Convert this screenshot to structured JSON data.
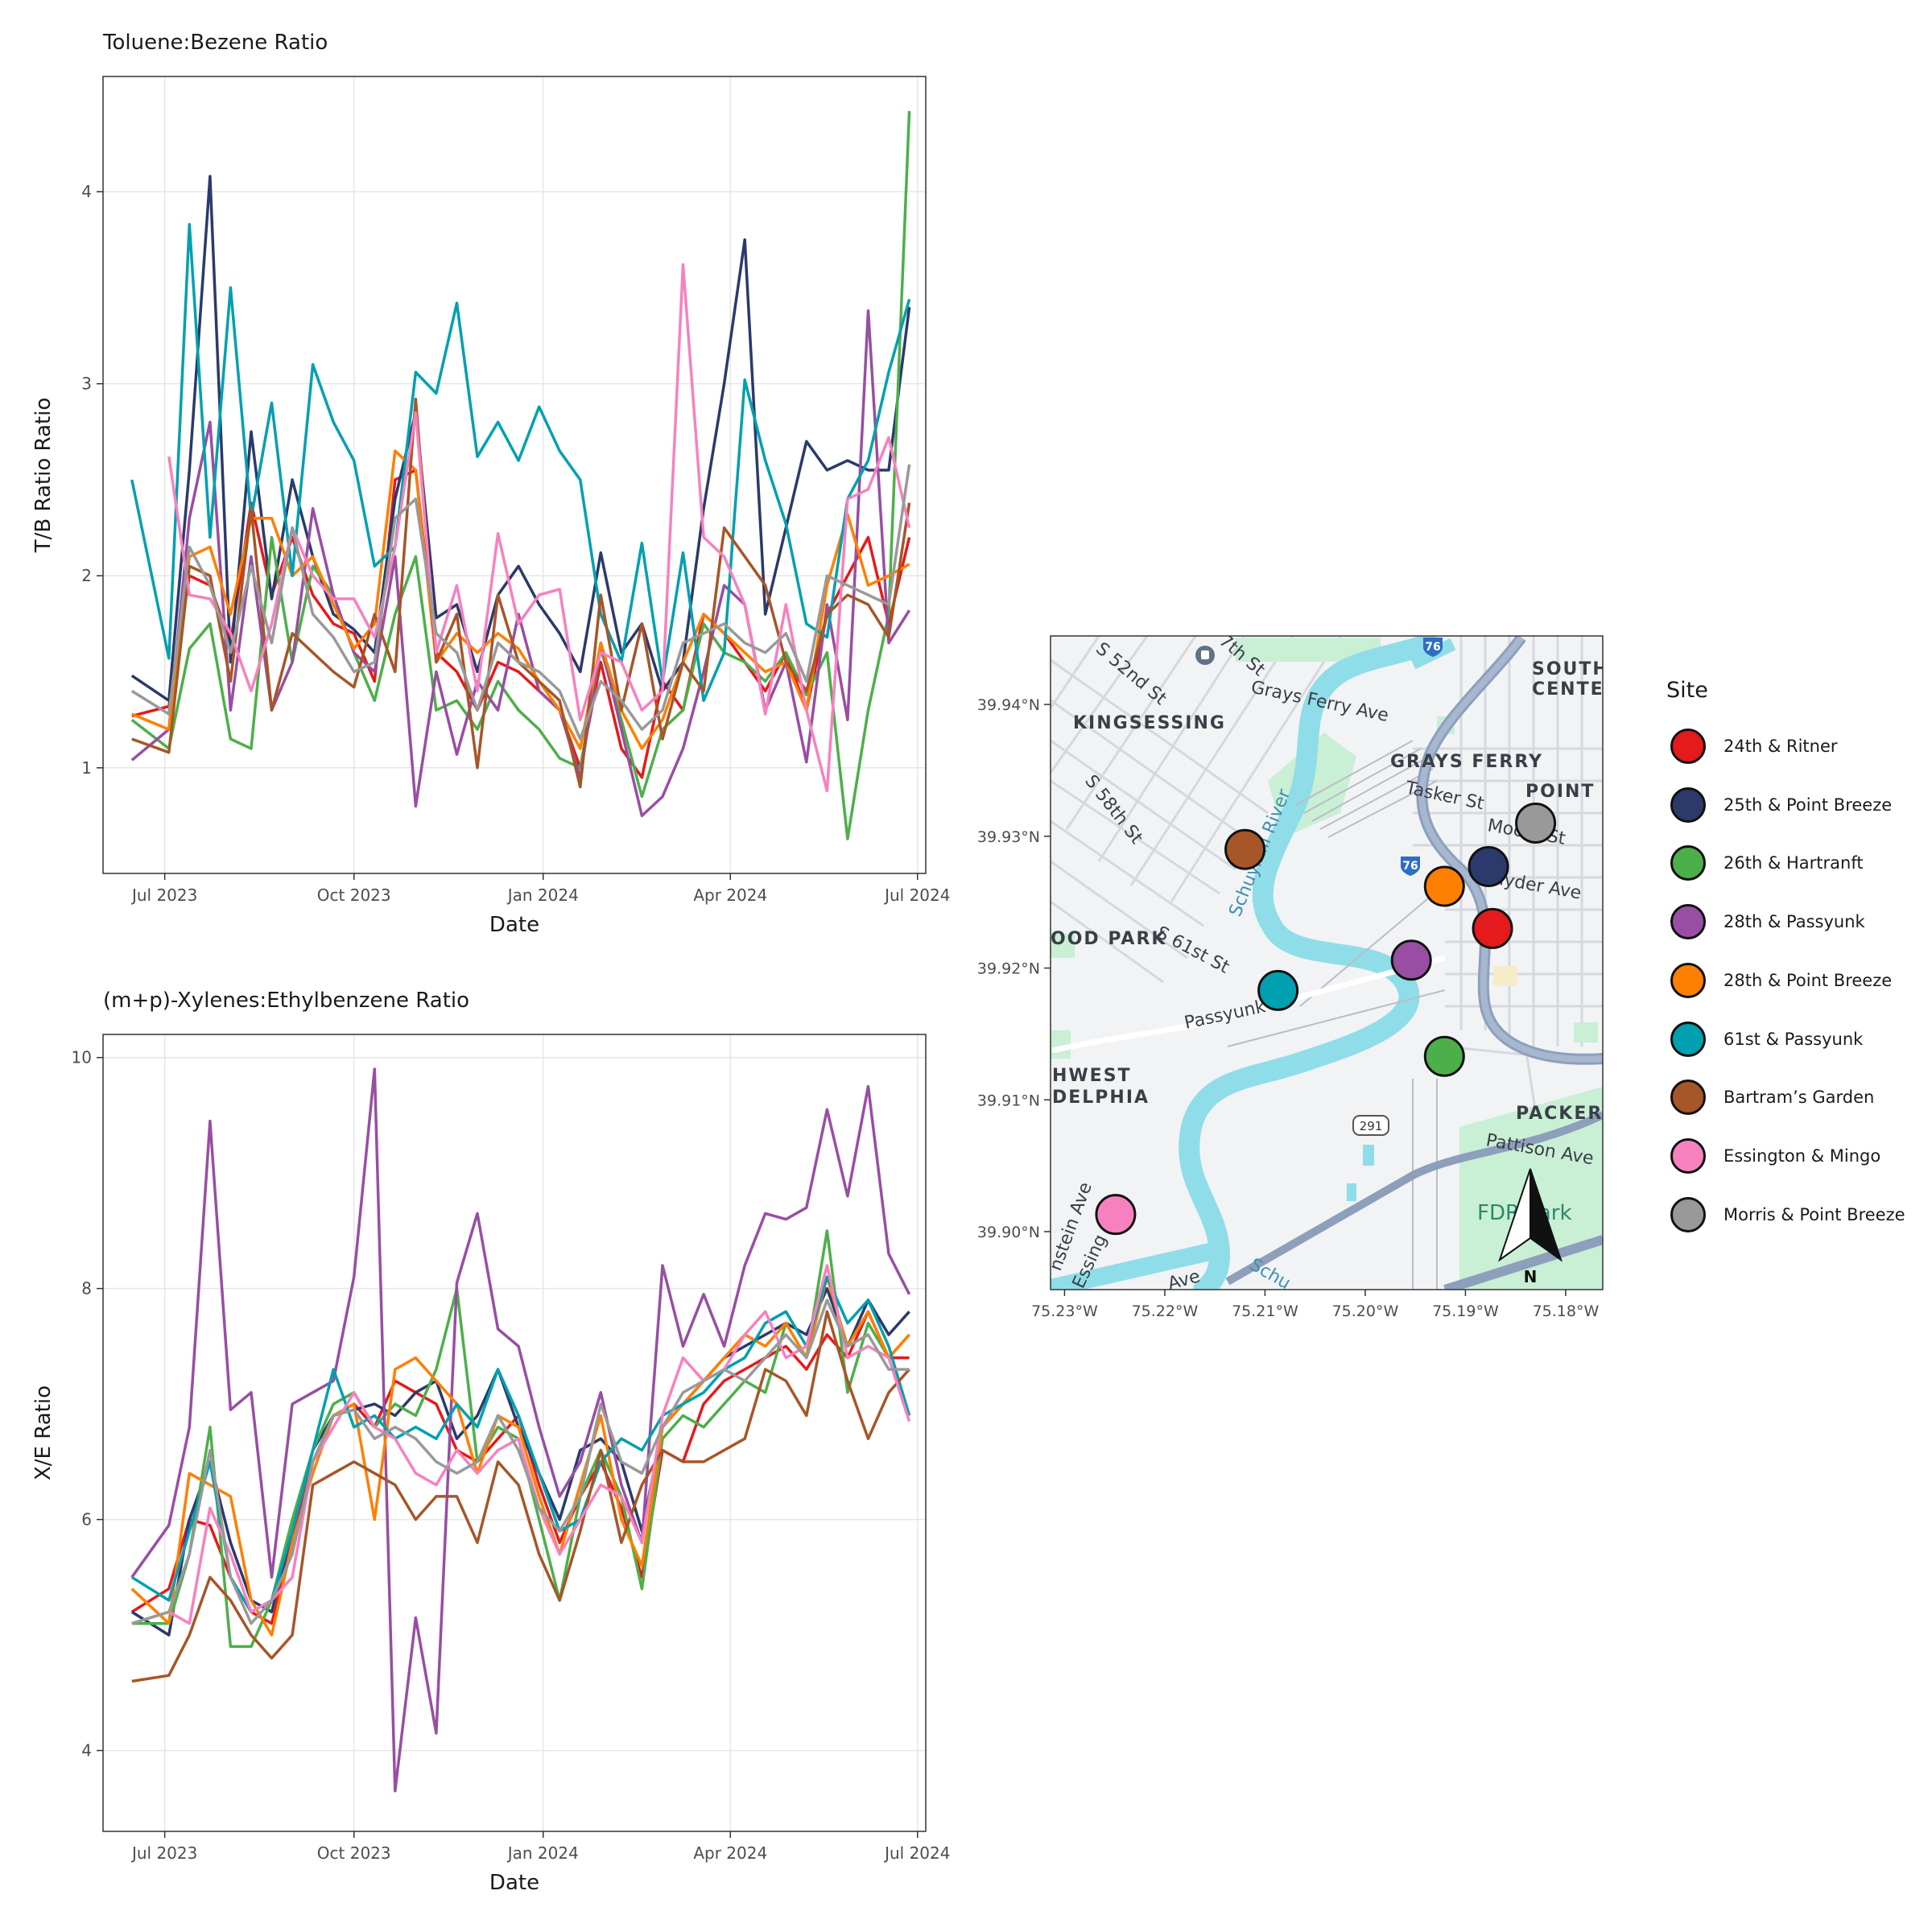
{
  "colors": {
    "24th & Ritner": "#e41a1c",
    "25th & Point Breeze": "#2b3a6b",
    "26th & Hartranft": "#4daf4a",
    "28th & Passyunk": "#984ea3",
    "28th & Point Breeze": "#ff7f00",
    "61st & Passyunk": "#00a0b0",
    "Bartram’s Garden": "#a65628",
    "Essington & Mingo": "#f781bf",
    "Morris & Point Breeze": "#999999"
  },
  "legend": {
    "title": "Site",
    "items": [
      "24th & Ritner",
      "25th & Point Breeze",
      "26th & Hartranft",
      "28th & Passyunk",
      "28th & Point Breeze",
      "61st & Passyunk",
      "Bartram’s Garden",
      "Essington & Mingo",
      "Morris & Point Breeze"
    ]
  },
  "chart_data": [
    {
      "type": "line",
      "title": "Toluene:Bezene Ratio",
      "xlabel": "Date",
      "ylabel": "T/B Ratio Ratio",
      "xlim": [
        "2023-06-01",
        "2024-07-05"
      ],
      "ylim": [
        0.45,
        4.6
      ],
      "x_ticks": [
        {
          "date": "2023-07-01",
          "label": "Jul 2023"
        },
        {
          "date": "2023-10-01",
          "label": "Oct 2023"
        },
        {
          "date": "2024-01-01",
          "label": "Jan 2024"
        },
        {
          "date": "2024-04-01",
          "label": "Apr 2024"
        },
        {
          "date": "2024-07-01",
          "label": "Jul 2024"
        }
      ],
      "y_ticks": [
        1,
        2,
        3,
        4
      ],
      "grid": true,
      "x": [
        "2023-06-15",
        "2023-07-03",
        "2023-07-13",
        "2023-07-23",
        "2023-08-02",
        "2023-08-12",
        "2023-08-22",
        "2023-09-01",
        "2023-09-11",
        "2023-09-21",
        "2023-10-01",
        "2023-10-11",
        "2023-10-21",
        "2023-10-31",
        "2023-11-10",
        "2023-11-20",
        "2023-11-30",
        "2023-12-10",
        "2023-12-20",
        "2023-12-30",
        "2024-01-09",
        "2024-01-19",
        "2024-01-29",
        "2024-02-08",
        "2024-02-18",
        "2024-02-28",
        "2024-03-09",
        "2024-03-19",
        "2024-03-29",
        "2024-04-08",
        "2024-04-18",
        "2024-04-28",
        "2024-05-08",
        "2024-05-18",
        "2024-05-28",
        "2024-06-07",
        "2024-06-17",
        "2024-06-27"
      ],
      "series": [
        {
          "name": "24th & Ritner",
          "values": [
            1.27,
            1.32,
            2.0,
            1.95,
            1.65,
            2.38,
            1.9,
            2.2,
            1.9,
            1.75,
            1.7,
            1.45,
            2.5,
            2.55,
            1.6,
            1.5,
            1.3,
            1.55,
            1.5,
            1.4,
            1.3,
            1.0,
            1.55,
            1.1,
            0.95,
            1.45,
            1.3,
            1.8,
            1.7,
            1.55,
            1.4,
            1.6,
            1.3,
            1.8,
            2.0,
            2.2,
            1.75,
            2.2
          ]
        },
        {
          "name": "25th & Point Breeze",
          "values": [
            1.48,
            1.35,
            2.55,
            4.08,
            1.55,
            2.75,
            1.88,
            2.5,
            2.1,
            1.8,
            1.72,
            1.6,
            2.4,
            2.85,
            1.78,
            1.85,
            1.5,
            1.9,
            2.05,
            1.85,
            1.7,
            1.5,
            2.12,
            1.6,
            1.75,
            1.4,
            1.55,
            2.35,
            3.0,
            3.75,
            1.8,
            2.25,
            2.7,
            2.55,
            2.6,
            2.55,
            2.55,
            3.4
          ]
        },
        {
          "name": "26th & Hartranft",
          "values": [
            1.25,
            1.1,
            1.62,
            1.75,
            1.15,
            1.1,
            2.2,
            1.55,
            2.05,
            1.9,
            1.6,
            1.35,
            1.8,
            2.1,
            1.3,
            1.35,
            1.2,
            1.45,
            1.3,
            1.2,
            1.05,
            1.0,
            1.62,
            1.25,
            0.85,
            1.2,
            1.3,
            1.75,
            1.6,
            1.55,
            1.45,
            1.6,
            1.38,
            1.6,
            0.63,
            1.3,
            1.8,
            4.42
          ]
        },
        {
          "name": "28th & Passyunk",
          "values": [
            1.04,
            1.2,
            2.3,
            2.8,
            1.3,
            2.1,
            1.3,
            1.55,
            2.35,
            1.9,
            1.6,
            1.5,
            2.1,
            0.8,
            1.5,
            1.07,
            1.45,
            1.3,
            1.8,
            1.4,
            1.3,
            0.95,
            1.65,
            1.2,
            0.75,
            0.85,
            1.1,
            1.5,
            1.95,
            1.85,
            1.3,
            1.55,
            1.03,
            1.85,
            1.25,
            3.38,
            1.65,
            1.82
          ]
        },
        {
          "name": "28th & Point Breeze",
          "values": [
            1.28,
            1.2,
            2.1,
            2.15,
            1.8,
            2.3,
            2.3,
            2.0,
            2.1,
            1.85,
            1.62,
            1.75,
            2.65,
            2.55,
            1.55,
            1.7,
            1.6,
            1.7,
            1.62,
            1.45,
            1.3,
            1.1,
            1.65,
            1.3,
            1.1,
            1.25,
            1.55,
            1.8,
            1.7,
            1.6,
            1.5,
            1.55,
            1.3,
            1.95,
            2.32,
            1.95,
            2.0,
            2.06
          ]
        },
        {
          "name": "61st & Passyunk",
          "values": [
            2.5,
            1.57,
            3.83,
            2.2,
            3.5,
            2.3,
            2.9,
            2.0,
            3.1,
            2.8,
            2.6,
            2.05,
            2.15,
            3.06,
            2.95,
            3.42,
            2.62,
            2.8,
            2.6,
            2.88,
            2.65,
            2.5,
            1.8,
            1.55,
            2.17,
            1.45,
            2.12,
            1.35,
            1.6,
            3.02,
            2.6,
            2.27,
            1.75,
            1.68,
            2.4,
            2.6,
            3.06,
            3.44
          ]
        },
        {
          "name": "Bartram’s Garden",
          "values": [
            1.15,
            1.08,
            2.05,
            2.0,
            1.45,
            2.35,
            1.3,
            1.7,
            1.6,
            1.5,
            1.42,
            1.8,
            1.5,
            2.92,
            1.55,
            1.8,
            1.0,
            1.9,
            1.55,
            1.45,
            1.35,
            0.9,
            1.9,
            1.3,
            1.75,
            1.15,
            1.55,
            1.4,
            2.25,
            2.1,
            1.95,
            1.55,
            1.4,
            1.8,
            1.9,
            1.85,
            1.68,
            2.38
          ]
        },
        {
          "name": "Essington & Mingo",
          "values": [
            null,
            2.62,
            1.9,
            1.88,
            1.7,
            1.4,
            1.75,
            2.25,
            2.0,
            1.88,
            1.88,
            1.68,
            2.15,
            2.85,
            1.6,
            1.95,
            1.4,
            2.22,
            1.75,
            1.9,
            1.93,
            1.25,
            1.6,
            1.55,
            1.3,
            1.4,
            3.62,
            2.2,
            2.1,
            1.85,
            1.28,
            1.85,
            1.3,
            0.88,
            2.4,
            2.45,
            2.72,
            2.25
          ]
        },
        {
          "name": "Morris & Point Breeze",
          "values": [
            1.4,
            1.28,
            2.15,
            1.95,
            1.6,
            2.05,
            1.65,
            2.25,
            1.8,
            1.68,
            1.5,
            1.55,
            2.3,
            2.4,
            1.7,
            1.6,
            1.3,
            1.65,
            1.55,
            1.5,
            1.4,
            1.15,
            1.45,
            1.35,
            1.2,
            1.3,
            1.65,
            1.7,
            1.75,
            1.65,
            1.6,
            1.7,
            1.45,
            2.0,
            1.95,
            1.9,
            1.85,
            2.58
          ]
        }
      ]
    },
    {
      "type": "line",
      "title": "(m+p)-Xylenes:Ethylbenzene Ratio",
      "xlabel": "Date",
      "ylabel": "X/E Ratio",
      "xlim": [
        "2023-06-01",
        "2024-07-05"
      ],
      "ylim": [
        3.3,
        10.2
      ],
      "x_ticks": [
        {
          "date": "2023-07-01",
          "label": "Jul 2023"
        },
        {
          "date": "2023-10-01",
          "label": "Oct 2023"
        },
        {
          "date": "2024-01-01",
          "label": "Jan 2024"
        },
        {
          "date": "2024-04-01",
          "label": "Apr 2024"
        },
        {
          "date": "2024-07-01",
          "label": "Jul 2024"
        }
      ],
      "y_ticks": [
        4,
        6,
        8,
        10
      ],
      "grid": true,
      "x": [
        "2023-06-15",
        "2023-07-03",
        "2023-07-13",
        "2023-07-23",
        "2023-08-02",
        "2023-08-12",
        "2023-08-22",
        "2023-09-01",
        "2023-09-11",
        "2023-09-21",
        "2023-10-01",
        "2023-10-11",
        "2023-10-21",
        "2023-10-31",
        "2023-11-10",
        "2023-11-20",
        "2023-11-30",
        "2023-12-10",
        "2023-12-20",
        "2023-12-30",
        "2024-01-09",
        "2024-01-19",
        "2024-01-29",
        "2024-02-08",
        "2024-02-18",
        "2024-02-28",
        "2024-03-09",
        "2024-03-19",
        "2024-03-29",
        "2024-04-08",
        "2024-04-18",
        "2024-04-28",
        "2024-05-08",
        "2024-05-18",
        "2024-05-28",
        "2024-06-07",
        "2024-06-17",
        "2024-06-27"
      ],
      "series": [
        {
          "name": "24th & Ritner",
          "values": [
            5.2,
            5.4,
            6.0,
            5.95,
            5.5,
            5.2,
            5.1,
            5.8,
            6.5,
            6.9,
            7.0,
            6.8,
            7.2,
            7.1,
            7.0,
            6.6,
            6.5,
            6.7,
            6.9,
            6.3,
            5.8,
            6.2,
            6.5,
            6.1,
            5.5,
            6.6,
            6.5,
            7.0,
            7.2,
            7.3,
            7.4,
            7.5,
            7.3,
            7.6,
            7.4,
            7.8,
            7.4,
            7.4
          ]
        },
        {
          "name": "25th & Point Breeze",
          "values": [
            5.2,
            5.0,
            6.0,
            6.5,
            5.8,
            5.3,
            5.2,
            5.9,
            6.6,
            6.9,
            6.95,
            7.0,
            6.9,
            7.1,
            7.2,
            6.7,
            6.9,
            7.3,
            6.8,
            6.4,
            6.0,
            6.6,
            6.7,
            6.5,
            5.9,
            6.8,
            7.0,
            7.2,
            7.4,
            7.5,
            7.6,
            7.7,
            7.6,
            8.0,
            7.5,
            7.9,
            7.6,
            7.8
          ]
        },
        {
          "name": "26th & Hartranft",
          "values": [
            5.1,
            5.1,
            5.7,
            6.8,
            4.9,
            4.9,
            5.3,
            6.0,
            6.6,
            7.0,
            7.1,
            6.8,
            7.0,
            6.9,
            7.3,
            8.0,
            6.5,
            6.8,
            6.7,
            6.0,
            5.3,
            6.2,
            6.6,
            6.2,
            5.4,
            6.7,
            6.9,
            6.8,
            7.0,
            7.2,
            7.1,
            7.7,
            7.4,
            8.5,
            7.1,
            7.7,
            7.4,
            7.6
          ]
        },
        {
          "name": "28th & Passyunk",
          "values": [
            5.5,
            5.95,
            6.8,
            9.45,
            6.95,
            7.1,
            5.5,
            7.0,
            7.1,
            7.2,
            8.1,
            9.9,
            3.65,
            5.15,
            4.15,
            8.05,
            8.65,
            7.65,
            7.5,
            6.8,
            6.2,
            6.5,
            7.1,
            6.3,
            5.8,
            8.2,
            7.5,
            7.95,
            7.5,
            8.2,
            8.65,
            8.6,
            8.7,
            9.55,
            8.8,
            9.75,
            8.3,
            7.95
          ]
        },
        {
          "name": "28th & Point Breeze",
          "values": [
            5.4,
            5.1,
            6.4,
            6.3,
            6.2,
            5.3,
            5.0,
            5.8,
            6.4,
            6.9,
            7.0,
            6.0,
            7.3,
            7.4,
            7.2,
            7.0,
            6.4,
            6.9,
            6.8,
            6.2,
            5.7,
            6.3,
            6.9,
            6.0,
            5.6,
            6.8,
            7.0,
            7.2,
            7.4,
            7.6,
            7.5,
            7.7,
            7.4,
            8.1,
            7.5,
            7.8,
            7.4,
            7.6
          ]
        },
        {
          "name": "61st & Passyunk",
          "values": [
            5.5,
            5.3,
            5.9,
            6.5,
            5.5,
            5.2,
            5.3,
            5.9,
            6.6,
            7.3,
            6.8,
            6.9,
            6.7,
            6.8,
            6.7,
            7.0,
            6.8,
            7.3,
            6.9,
            6.4,
            5.9,
            6.0,
            6.5,
            6.7,
            6.6,
            6.9,
            7.0,
            7.1,
            7.3,
            7.4,
            7.7,
            7.8,
            7.5,
            8.1,
            7.7,
            7.9,
            7.5,
            6.9
          ]
        },
        {
          "name": "Bartram’s Garden",
          "values": [
            4.6,
            4.65,
            5.0,
            5.5,
            5.3,
            5.0,
            4.8,
            5.0,
            6.3,
            6.4,
            6.5,
            6.4,
            6.3,
            6.0,
            6.2,
            6.2,
            5.8,
            6.5,
            6.3,
            5.7,
            5.3,
            5.9,
            6.6,
            5.8,
            6.3,
            6.6,
            6.5,
            6.5,
            6.6,
            6.7,
            7.3,
            7.2,
            6.9,
            7.8,
            7.2,
            6.7,
            7.1,
            7.3
          ]
        },
        {
          "name": "Essington & Mingo",
          "values": [
            5.1,
            5.2,
            5.1,
            6.1,
            5.7,
            5.2,
            5.3,
            5.5,
            6.5,
            6.8,
            7.1,
            6.8,
            6.7,
            6.4,
            6.3,
            6.6,
            6.4,
            6.6,
            6.7,
            6.1,
            5.7,
            6.0,
            6.3,
            6.2,
            5.8,
            6.9,
            7.4,
            7.2,
            7.3,
            7.6,
            7.8,
            7.4,
            7.5,
            8.2,
            7.4,
            7.5,
            7.4,
            6.85
          ]
        },
        {
          "name": "Morris & Point Breeze",
          "values": [
            5.1,
            5.2,
            5.7,
            6.6,
            5.5,
            5.1,
            5.3,
            5.7,
            6.5,
            6.9,
            6.95,
            6.7,
            6.8,
            6.7,
            6.5,
            6.4,
            6.5,
            6.9,
            6.6,
            6.1,
            5.9,
            6.2,
            7.0,
            6.5,
            6.4,
            6.8,
            7.1,
            7.2,
            7.3,
            7.2,
            7.4,
            7.6,
            7.4,
            7.9,
            7.5,
            7.6,
            7.3,
            7.3
          ]
        }
      ]
    }
  ],
  "map": {
    "lat_ticks": [
      "39.94°N",
      "39.93°N",
      "39.92°N",
      "39.91°N",
      "39.90°N"
    ],
    "lon_ticks": [
      "75.23°W",
      "75.22°W",
      "75.21°W",
      "75.20°W",
      "75.19°W",
      "75.18°W"
    ],
    "labels": {
      "st52": "S 52nd St",
      "th7": "7th St",
      "grays_ferry_ave": "Grays Ferry Ave",
      "kingsessing": "KINGSESSING",
      "grays_ferry": "GRAYS FERRY",
      "south_center_1": "SOUTH",
      "south_center_2": "CENTER",
      "tasker": "Tasker St",
      "point": "POINT",
      "moore": "Moore St",
      "snyder": "Snyder Ave",
      "st58": "S 58th St",
      "schuylkill": "Schuylkill River",
      "wood_park": "OOD PARK",
      "st61": "S 61st St",
      "passyunk": "Passyunk",
      "hwest": "HWEST",
      "delphia": "DELPHIA",
      "packer": "PACKER",
      "pattison": "Pattison Ave",
      "fdr": "FDR Park",
      "stein": "nstein Ave",
      "essing": "Essing",
      "ave": "Ave",
      "schu2": "Schu",
      "shield_76a": "76",
      "shield_76b": "76",
      "shield_291": "291",
      "north": "N"
    },
    "sites": [
      {
        "name": "24th & Ritner",
        "lon": -75.1873,
        "lat": 39.923
      },
      {
        "name": "25th & Point Breeze",
        "lon": -75.1877,
        "lat": 39.9277
      },
      {
        "name": "26th & Hartranft",
        "lon": -75.1921,
        "lat": 39.9133
      },
      {
        "name": "28th & Passyunk",
        "lon": -75.1954,
        "lat": 39.9206
      },
      {
        "name": "28th & Point Breeze",
        "lon": -75.1921,
        "lat": 39.9262
      },
      {
        "name": "61st & Passyunk",
        "lon": -75.2087,
        "lat": 39.9183
      },
      {
        "name": "Bartram’s Garden",
        "lon": -75.212,
        "lat": 39.929
      },
      {
        "name": "Essington & Mingo",
        "lon": -75.2249,
        "lat": 39.9013
      },
      {
        "name": "Morris & Point Breeze",
        "lon": -75.183,
        "lat": 39.931
      }
    ]
  }
}
